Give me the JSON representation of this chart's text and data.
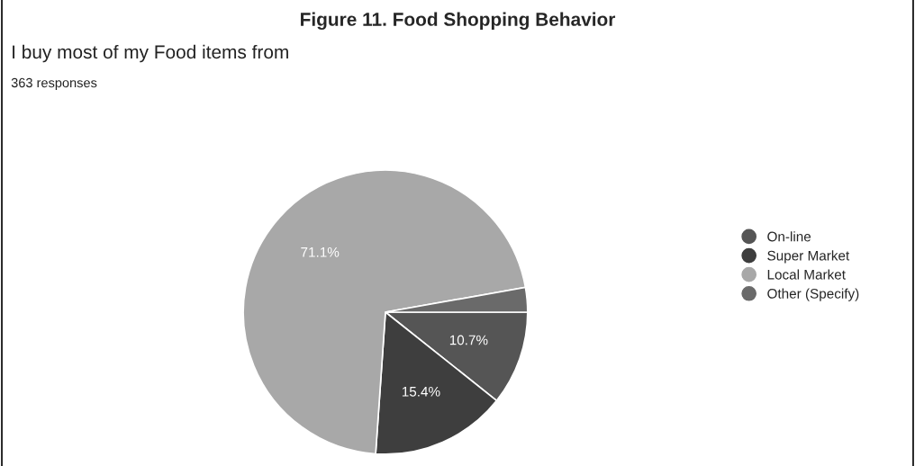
{
  "chart_data": {
    "type": "pie",
    "title": "Figure 11. Food Shopping Behavior",
    "subtitle": "I buy most of my Food items from",
    "annotations": [
      "363 responses"
    ],
    "categories": [
      "On-line",
      "Super Market",
      "Local Market",
      "Other (Specify)"
    ],
    "values": [
      10.7,
      15.4,
      71.1,
      2.8
    ],
    "value_labels": [
      "10.7%",
      "15.4%",
      "71.1%",
      null
    ],
    "colors": [
      "#555555",
      "#3e3e3e",
      "#a8a8a8",
      "#6a6a6a"
    ],
    "legend": "right"
  }
}
